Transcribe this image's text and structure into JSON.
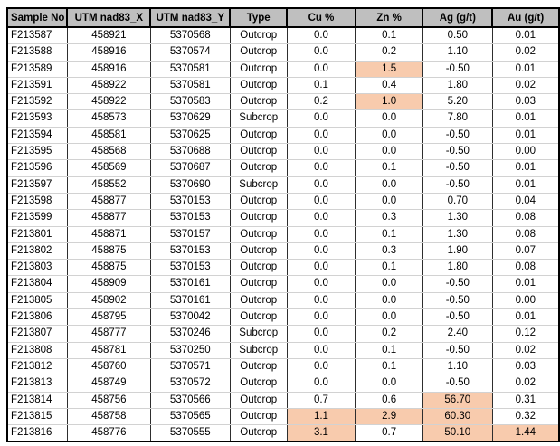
{
  "table": {
    "header_bg": "#BFBFBF",
    "highlight_color": "#F8CBAD",
    "columns": [
      "Sample No",
      "UTM nad83_X",
      "UTM nad83_Y",
      "Type",
      "Cu %",
      "Zn %",
      "Ag (g/t)",
      "Au (g/t)"
    ],
    "rows": [
      {
        "cells": [
          "F213587",
          "458921",
          "5370568",
          "Outcrop",
          "0.0",
          "0.1",
          "0.50",
          "0.01"
        ],
        "highlight": []
      },
      {
        "cells": [
          "F213588",
          "458916",
          "5370574",
          "Outcrop",
          "0.0",
          "0.2",
          "1.10",
          "0.02"
        ],
        "highlight": []
      },
      {
        "cells": [
          "F213589",
          "458916",
          "5370581",
          "Outcrop",
          "0.0",
          "1.5",
          "-0.50",
          "0.01"
        ],
        "highlight": [
          5
        ]
      },
      {
        "cells": [
          "F213591",
          "458922",
          "5370581",
          "Outcrop",
          "0.1",
          "0.4",
          "1.80",
          "0.02"
        ],
        "highlight": []
      },
      {
        "cells": [
          "F213592",
          "458922",
          "5370583",
          "Outcrop",
          "0.2",
          "1.0",
          "5.20",
          "0.03"
        ],
        "highlight": [
          5
        ]
      },
      {
        "cells": [
          "F213593",
          "458573",
          "5370629",
          "Subcrop",
          "0.0",
          "0.0",
          "7.80",
          "0.01"
        ],
        "highlight": []
      },
      {
        "cells": [
          "F213594",
          "458581",
          "5370625",
          "Outcrop",
          "0.0",
          "0.0",
          "-0.50",
          "0.01"
        ],
        "highlight": []
      },
      {
        "cells": [
          "F213595",
          "458568",
          "5370688",
          "Outcrop",
          "0.0",
          "0.0",
          "-0.50",
          "0.00"
        ],
        "highlight": []
      },
      {
        "cells": [
          "F213596",
          "458569",
          "5370687",
          "Outcrop",
          "0.0",
          "0.1",
          "-0.50",
          "0.01"
        ],
        "highlight": []
      },
      {
        "cells": [
          "F213597",
          "458552",
          "5370690",
          "Subcrop",
          "0.0",
          "0.0",
          "-0.50",
          "0.01"
        ],
        "highlight": []
      },
      {
        "cells": [
          "F213598",
          "458877",
          "5370153",
          "Outcrop",
          "0.0",
          "0.0",
          "0.70",
          "0.04"
        ],
        "highlight": []
      },
      {
        "cells": [
          "F213599",
          "458877",
          "5370153",
          "Outcrop",
          "0.0",
          "0.3",
          "1.30",
          "0.08"
        ],
        "highlight": []
      },
      {
        "cells": [
          "F213801",
          "458871",
          "5370157",
          "Outcrop",
          "0.0",
          "0.1",
          "1.30",
          "0.08"
        ],
        "highlight": []
      },
      {
        "cells": [
          "F213802",
          "458875",
          "5370153",
          "Outcrop",
          "0.0",
          "0.3",
          "1.90",
          "0.07"
        ],
        "highlight": []
      },
      {
        "cells": [
          "F213803",
          "458875",
          "5370153",
          "Outcrop",
          "0.0",
          "0.1",
          "1.80",
          "0.08"
        ],
        "highlight": []
      },
      {
        "cells": [
          "F213804",
          "458909",
          "5370161",
          "Outcrop",
          "0.0",
          "0.0",
          "-0.50",
          "0.01"
        ],
        "highlight": []
      },
      {
        "cells": [
          "F213805",
          "458902",
          "5370161",
          "Outcrop",
          "0.0",
          "0.0",
          "-0.50",
          "0.00"
        ],
        "highlight": []
      },
      {
        "cells": [
          "F213806",
          "458795",
          "5370042",
          "Outcrop",
          "0.0",
          "0.0",
          "-0.50",
          "0.01"
        ],
        "highlight": []
      },
      {
        "cells": [
          "F213807",
          "458777",
          "5370246",
          "Subcrop",
          "0.0",
          "0.2",
          "2.40",
          "0.12"
        ],
        "highlight": []
      },
      {
        "cells": [
          "F213808",
          "458781",
          "5370250",
          "Subcrop",
          "0.0",
          "0.1",
          "-0.50",
          "0.02"
        ],
        "highlight": []
      },
      {
        "cells": [
          "F213812",
          "458760",
          "5370571",
          "Outcrop",
          "0.0",
          "0.1",
          "1.10",
          "0.03"
        ],
        "highlight": []
      },
      {
        "cells": [
          "F213813",
          "458749",
          "5370572",
          "Outcrop",
          "0.0",
          "0.0",
          "-0.50",
          "0.02"
        ],
        "highlight": []
      },
      {
        "cells": [
          "F213814",
          "458756",
          "5370566",
          "Outcrop",
          "0.7",
          "0.6",
          "56.70",
          "0.31"
        ],
        "highlight": [
          6
        ]
      },
      {
        "cells": [
          "F213815",
          "458758",
          "5370565",
          "Outcrop",
          "1.1",
          "2.9",
          "60.30",
          "0.32"
        ],
        "highlight": [
          4,
          5,
          6
        ]
      },
      {
        "cells": [
          "F213816",
          "458776",
          "5370555",
          "Outcrop",
          "3.1",
          "0.7",
          "50.10",
          "1.44"
        ],
        "highlight": [
          4,
          6,
          7
        ]
      }
    ]
  }
}
